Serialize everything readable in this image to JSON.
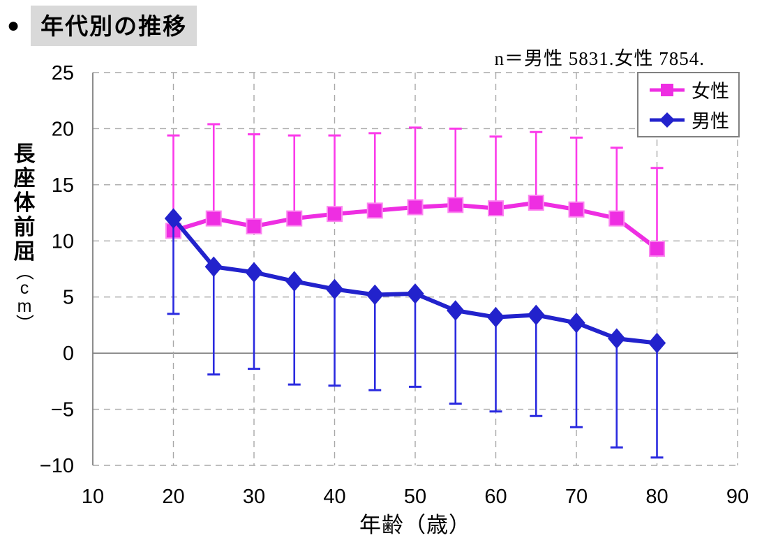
{
  "header": {
    "bullet": "●",
    "title": "年代別の推移"
  },
  "chart_data": {
    "type": "line",
    "title": "年代別の推移",
    "annotation": "n＝男性 5831.女性 7854.",
    "xlabel": "年齢（歳）",
    "ylabel": "長座体前屈（cm）",
    "xlim": [
      10,
      90
    ],
    "ylim": [
      -10,
      25
    ],
    "x_ticks": [
      10,
      20,
      30,
      40,
      50,
      60,
      70,
      80,
      90
    ],
    "y_ticks": [
      25,
      20,
      15,
      10,
      5,
      0,
      -5,
      -10
    ],
    "grid": "dashed",
    "legend_position": "top-right",
    "x": [
      20,
      25,
      30,
      35,
      40,
      45,
      50,
      55,
      60,
      65,
      70,
      75,
      80
    ],
    "series": [
      {
        "name": "女性",
        "marker": "square",
        "color": "#EE2EE2",
        "error_color": "#FB3BEA",
        "marker_edge": "#FC86F0",
        "error_direction": "up",
        "values": [
          10.9,
          12.0,
          11.3,
          12.0,
          12.4,
          12.7,
          13.0,
          13.2,
          12.9,
          13.4,
          12.8,
          12.0,
          9.3
        ],
        "error_to": [
          19.4,
          20.4,
          19.5,
          19.4,
          19.4,
          19.6,
          20.1,
          20.0,
          19.3,
          19.7,
          19.2,
          18.3,
          16.5
        ]
      },
      {
        "name": "男性",
        "marker": "diamond",
        "color": "#2222CC",
        "error_color": "#2A2ADF",
        "marker_edge": "#2222CC",
        "error_direction": "down",
        "values": [
          12.0,
          7.7,
          7.2,
          6.4,
          5.7,
          5.2,
          5.3,
          3.8,
          3.2,
          3.4,
          2.7,
          1.3,
          0.9
        ],
        "error_to": [
          3.5,
          -1.9,
          -1.4,
          -2.8,
          -2.9,
          -3.3,
          -3.0,
          -4.5,
          -5.2,
          -5.6,
          -6.6,
          -8.4,
          -9.3
        ]
      }
    ],
    "colors": {
      "grid": "#A8A8A8",
      "axis": "#808080",
      "title_highlight": "#D9D9D9"
    }
  }
}
